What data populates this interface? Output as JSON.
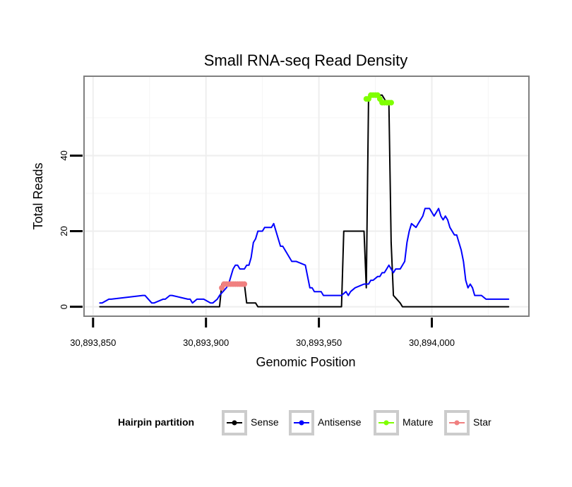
{
  "chart_data": {
    "type": "line",
    "title": "Small RNA-seq Read Density",
    "xlabel": "Genomic Position",
    "ylabel": "Total Reads",
    "xlim": [
      30893846,
      30894043
    ],
    "ylim": [
      -2.5,
      61
    ],
    "x_ticks": [
      30893850,
      30893900,
      30893950,
      30894000
    ],
    "x_tick_labels": [
      "30,893,850",
      "30,893,900",
      "30,893,950",
      "30,894,000"
    ],
    "y_ticks": [
      0,
      20,
      40
    ],
    "y_tick_labels": [
      "0",
      "20",
      "40"
    ],
    "grid": true,
    "legend": {
      "title": "Hairpin partition",
      "position": "bottom",
      "entries": [
        {
          "label": "Sense",
          "color": "#000000"
        },
        {
          "label": "Antisense",
          "color": "#0000ff"
        },
        {
          "label": "Mature",
          "color": "#7fff00"
        },
        {
          "label": "Star",
          "color": "#f08080"
        }
      ]
    },
    "series": [
      {
        "name": "Sense",
        "color": "#000000",
        "x": [
          30893853,
          30893906,
          30893907,
          30893917,
          30893918,
          30893922,
          30893923,
          30893960,
          30893961,
          30893970,
          30893971,
          30893972,
          30893974,
          30893978,
          30893980,
          30893981,
          30893982,
          30893983,
          30893986,
          30893987,
          30894034
        ],
        "values": [
          0,
          0,
          6,
          6,
          1,
          1,
          0,
          0,
          20,
          20,
          5,
          55,
          56,
          56,
          54,
          54,
          17,
          3,
          1,
          0,
          0
        ]
      },
      {
        "name": "Antisense",
        "color": "#0000ff",
        "x": [
          30893853,
          30893854,
          30893857,
          30893858,
          30893872,
          30893873,
          30893876,
          30893877,
          30893881,
          30893882,
          30893884,
          30893885,
          30893892,
          30893893,
          30893894,
          30893896,
          30893899,
          30893902,
          30893903,
          30893905,
          30893906,
          30893909,
          30893910,
          30893911,
          30893912,
          30893913,
          30893914,
          30893915,
          30893916,
          30893917,
          30893918,
          30893919,
          30893920,
          30893921,
          30893922,
          30893923,
          30893924,
          30893925,
          30893926,
          30893929,
          30893930,
          30893933,
          30893934,
          30893935,
          30893937,
          30893938,
          30893939,
          30893940,
          30893944,
          30893945,
          30893946,
          30893947,
          30893948,
          30893951,
          30893952,
          30893953,
          30893954,
          30893956,
          30893958,
          30893960,
          30893962,
          30893963,
          30893964,
          30893966,
          30893970,
          30893972,
          30893973,
          30893974,
          30893976,
          30893977,
          30893978,
          30893979,
          30893980,
          30893981,
          30893982,
          30893983,
          30893984,
          30893986,
          30893987,
          30893988,
          30893989,
          30893990,
          30893991,
          30893993,
          30893994,
          30893996,
          30893997,
          30893999,
          30894000,
          30894001,
          30894002,
          30894003,
          30894004,
          30894005,
          30894006,
          30894007,
          30894008,
          30894010,
          30894011,
          30894012,
          30894013,
          30894014,
          30894015,
          30894016,
          30894017,
          30894018,
          30894019,
          30894020,
          30894021,
          30894022,
          30894024,
          30894025,
          30894026,
          30894028,
          30894029,
          30894034
        ],
        "values": [
          1,
          1,
          2,
          2,
          3,
          3,
          1,
          1,
          2,
          2,
          3,
          3,
          2,
          2,
          1,
          2,
          2,
          1,
          1,
          2,
          3,
          5,
          6,
          8,
          10,
          11,
          11,
          10,
          10,
          10,
          11,
          11,
          13,
          17,
          18,
          20,
          20,
          20,
          21,
          21,
          22,
          16,
          16,
          15,
          13,
          12,
          12,
          12,
          11,
          8,
          5,
          5,
          4,
          4,
          3,
          3,
          3,
          3,
          3,
          3,
          4,
          3,
          4,
          5,
          6,
          6,
          7,
          7,
          8,
          8,
          9,
          9,
          10,
          11,
          10,
          9,
          10,
          10,
          11,
          12,
          17,
          20,
          22,
          21,
          22,
          24,
          26,
          26,
          25,
          24,
          25,
          26,
          24,
          23,
          24,
          23,
          21,
          19,
          19,
          17,
          15,
          12,
          7,
          5,
          6,
          5,
          3,
          3,
          3,
          3,
          2,
          2,
          2,
          2,
          2,
          2
        ],
        "point_size": 0
      },
      {
        "name": "Mature",
        "color": "#7fff00",
        "x": [
          30893971,
          30893972,
          30893973,
          30893974,
          30893975,
          30893976,
          30893977,
          30893978,
          30893979,
          30893980,
          30893981,
          30893982
        ],
        "values": [
          55,
          55,
          56,
          56,
          56,
          56,
          55,
          54,
          54,
          54,
          54,
          54
        ],
        "point_size": 4
      },
      {
        "name": "Star",
        "color": "#f08080",
        "x": [
          30893907,
          30893908,
          30893909,
          30893910,
          30893911,
          30893912,
          30893913,
          30893914,
          30893915,
          30893916,
          30893917
        ],
        "values": [
          5,
          6,
          6,
          6,
          6,
          6,
          6,
          6,
          6,
          6,
          6
        ],
        "point_size": 4
      }
    ]
  }
}
